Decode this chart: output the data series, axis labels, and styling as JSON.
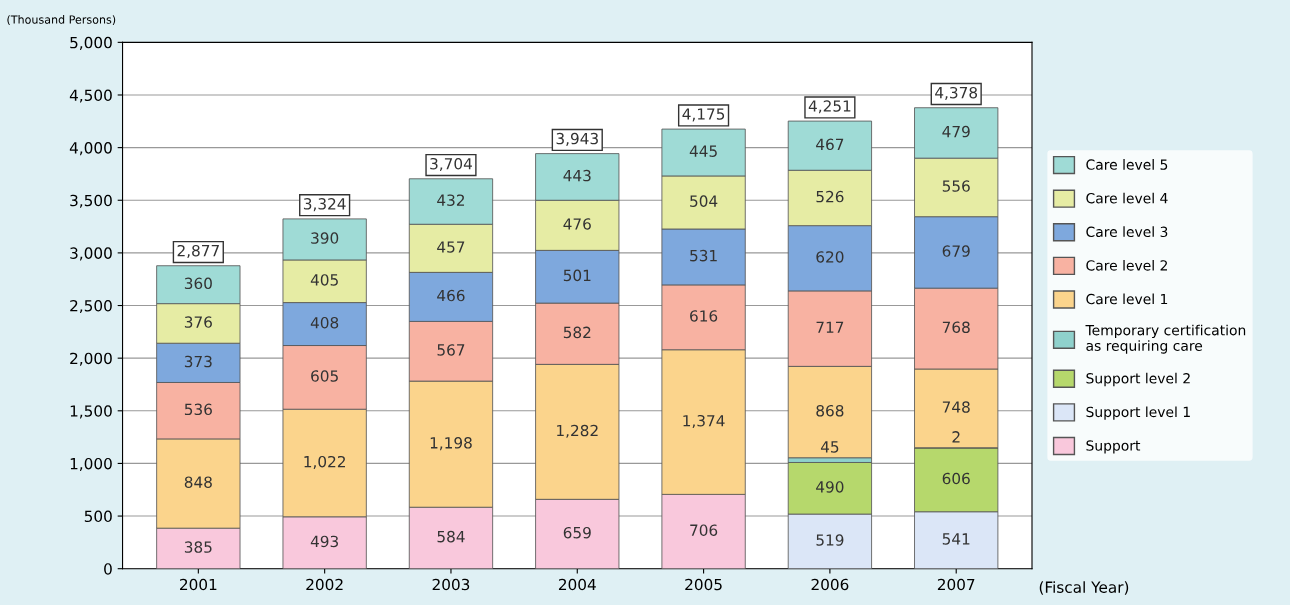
{
  "chart_data": {
    "type": "bar",
    "stacked": true,
    "ylabel": "(Thousand Persons)",
    "xlabel": "(Fiscal Year)",
    "categories": [
      "2001",
      "2002",
      "2003",
      "2004",
      "2005",
      "2006",
      "2007"
    ],
    "series": [
      {
        "name": "Support",
        "color": "#f9c8dc",
        "values": [
          385,
          493,
          584,
          659,
          706,
          null,
          null
        ],
        "value_labels": [
          "385",
          "493",
          "584",
          "659",
          "706",
          null,
          null
        ]
      },
      {
        "name": "Support level 1",
        "color": "#dbe6f7",
        "values": [
          null,
          null,
          null,
          null,
          null,
          519,
          541
        ],
        "value_labels": [
          null,
          null,
          null,
          null,
          null,
          "519",
          "541"
        ]
      },
      {
        "name": "Support level 2",
        "color": "#b6d86c",
        "values": [
          null,
          null,
          null,
          null,
          null,
          490,
          606
        ],
        "value_labels": [
          null,
          null,
          null,
          null,
          null,
          "490",
          "606"
        ]
      },
      {
        "name": "Temporary certification\nas requiring care",
        "color": "#8fd1cc",
        "values": [
          null,
          null,
          null,
          null,
          null,
          45,
          2
        ],
        "value_labels": [
          null,
          null,
          null,
          null,
          null,
          "45",
          "2"
        ]
      },
      {
        "name": "Care level 1",
        "color": "#fbd48c",
        "values": [
          848,
          1022,
          1198,
          1282,
          1374,
          868,
          748
        ],
        "value_labels": [
          "848",
          "1,022",
          "1,198",
          "1,282",
          "1,374",
          "868",
          "748"
        ]
      },
      {
        "name": "Care level 2",
        "color": "#f8b2a2",
        "values": [
          536,
          605,
          567,
          582,
          616,
          717,
          768
        ],
        "value_labels": [
          "536",
          "605",
          "567",
          "582",
          "616",
          "717",
          "768"
        ]
      },
      {
        "name": "Care level 3",
        "color": "#7ea8dd",
        "values": [
          373,
          408,
          466,
          501,
          531,
          620,
          679
        ],
        "value_labels": [
          "373",
          "408",
          "466",
          "501",
          "531",
          "620",
          "679"
        ]
      },
      {
        "name": "Care level 4",
        "color": "#e6eca4",
        "values": [
          376,
          405,
          457,
          476,
          504,
          526,
          556
        ],
        "value_labels": [
          "376",
          "405",
          "457",
          "476",
          "504",
          "526",
          "556"
        ]
      },
      {
        "name": "Care level 5",
        "color": "#9fdbd6",
        "values": [
          360,
          390,
          432,
          443,
          445,
          467,
          479
        ],
        "value_labels": [
          "360",
          "390",
          "432",
          "443",
          "445",
          "467",
          "479"
        ]
      }
    ],
    "totals": [
      "2,877",
      "3,324",
      "3,704",
      "3,943",
      "4,175",
      "4,251",
      "4,378"
    ],
    "ylim": [
      0,
      5000
    ],
    "yticks": [
      0,
      500,
      {
        "value": 1000,
        "label": "1,000"
      },
      {
        "value": 1500,
        "label": "1,500"
      },
      {
        "value": 2000,
        "label": "2,000"
      },
      {
        "value": 2500,
        "label": "2,500"
      },
      {
        "value": 3000,
        "label": "3,000"
      },
      {
        "value": 3500,
        "label": "3,500"
      },
      {
        "value": 4000,
        "label": "4,000"
      },
      {
        "value": 4500,
        "label": "4,500"
      },
      {
        "value": 5000,
        "label": "5,000"
      }
    ],
    "grid": "y",
    "legend": "right"
  }
}
